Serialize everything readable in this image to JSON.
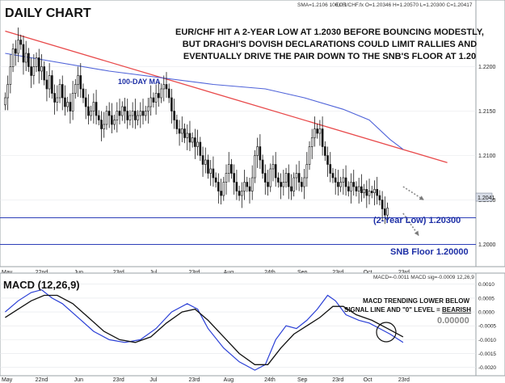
{
  "chart_data": [
    {
      "type": "candlestick",
      "title": "DAILY CHART",
      "header": {
        "sma": "SMA=1.2106  100,0,1",
        "quote": "EUR/CHF.fx O=1.20346 H=1.20570 L=1.20300 C=1.20417"
      },
      "annotation": {
        "lines": [
          "EUR/CHF HIT A 2-YEAR LOW AT 1.2030 BEFORE BOUNCING MODESTLY,",
          "BUT DRAGHI'S DOVISH DECLARATIONS COULD LIMIT RALLIES AND",
          "EVENTUALLY DRIVE THE PAIR DOWN TO THE SNB'S FLOOR AT 1.20"
        ]
      },
      "ma_label": "100-DAY MA",
      "ylim": [
        1.1975,
        1.2275
      ],
      "y_ticks": [
        "1.2200",
        "1.2150",
        "1.2100",
        "1.2050",
        "1.2000"
      ],
      "last_price": "1.2041",
      "levels": [
        {
          "label": "(2-Year Low)  1.20300",
          "value": 1.203
        },
        {
          "label": "SNB Floor  1.20000",
          "value": 1.2
        }
      ],
      "x_tick_labels": [
        "May",
        "22nd",
        "Jun",
        "23rd",
        "Jul",
        "23rd",
        "Aug",
        "24th",
        "Sep",
        "23rd",
        "Oct",
        "23rd"
      ],
      "close": [
        1.2165,
        1.218,
        1.22,
        1.222,
        1.2215,
        1.223,
        1.2225,
        1.2205,
        1.2215,
        1.22,
        1.219,
        1.22,
        1.221,
        1.2195,
        1.22,
        1.2185,
        1.2175,
        1.219,
        1.217,
        1.216,
        1.2165,
        1.218,
        1.2165,
        1.2155,
        1.216,
        1.215,
        1.217,
        1.218,
        1.219,
        1.2175,
        1.2165,
        1.2155,
        1.2145,
        1.215,
        1.216,
        1.2145,
        1.214,
        1.213,
        1.2135,
        1.215,
        1.2145,
        1.2135,
        1.214,
        1.215,
        1.2145,
        1.2155,
        1.215,
        1.214,
        1.2145,
        1.215,
        1.214,
        1.2145,
        1.215,
        1.2145,
        1.215,
        1.2155,
        1.2165,
        1.216,
        1.217,
        1.2165,
        1.2175,
        1.218,
        1.2175,
        1.2165,
        1.215,
        1.214,
        1.213,
        1.2125,
        1.213,
        1.212,
        1.2125,
        1.2115,
        1.212,
        1.211,
        1.2115,
        1.21,
        1.209,
        1.2095,
        1.208,
        1.2085,
        1.2075,
        1.207,
        1.206,
        1.2055,
        1.207,
        1.208,
        1.209,
        1.208,
        1.207,
        1.206,
        1.2055,
        1.206,
        1.207,
        1.2065,
        1.206,
        1.2075,
        1.21,
        1.211,
        1.2095,
        1.208,
        1.207,
        1.2065,
        1.2085,
        1.209,
        1.2075,
        1.207,
        1.2065,
        1.207,
        1.208,
        1.2065,
        1.206,
        1.2075,
        1.208,
        1.207,
        1.2065,
        1.2075,
        1.209,
        1.211,
        1.212,
        1.213,
        1.2125,
        1.213,
        1.211,
        1.21,
        1.209,
        1.208,
        1.2075,
        1.207,
        1.2065,
        1.207,
        1.2075,
        1.2065,
        1.206,
        1.207,
        1.2065,
        1.206,
        1.2065,
        1.2058,
        1.2062,
        1.2055,
        1.206,
        1.2058,
        1.2062,
        1.2055,
        1.205,
        1.204,
        1.2033,
        1.2041
      ],
      "sma100": [
        [
          0,
          1.2215
        ],
        [
          40,
          1.2195
        ],
        [
          80,
          1.218
        ],
        [
          100,
          1.2175
        ],
        [
          115,
          1.2165
        ],
        [
          130,
          1.2152
        ],
        [
          140,
          1.214
        ],
        [
          148,
          1.2118
        ],
        [
          153,
          1.2107
        ]
      ],
      "trendline": [
        [
          0,
          1.224
        ],
        [
          170,
          1.2092
        ]
      ],
      "forecast_arrows": [
        {
          "from": [
            153,
            1.2065
          ],
          "to": [
            161,
            1.205
          ]
        },
        {
          "from": [
            153,
            1.2035
          ],
          "to": [
            159,
            1.201
          ]
        }
      ],
      "xlim": [
        -2,
        181
      ]
    },
    {
      "type": "line",
      "title": "MACD (12,26,9)",
      "readout": "MACD=-0.0011 MACD sig=-0.0009  12,26,9",
      "ylim": [
        -0.0023,
        0.0014
      ],
      "y_ticks": [
        "0.0010",
        "0.0005",
        "0.0000",
        "-0.0005",
        "-0.0010",
        "-0.0015",
        "-0.0020"
      ],
      "zero_label": "0.00000",
      "annotation": {
        "line1": "MACD TRENDING LOWER BELOW",
        "line2_prefix": "SIGNAL LINE AND \"0\" LEVEL = ",
        "line2_emph": "BEARISH"
      },
      "x_tick_labels": [
        "May",
        "22nd",
        "Jun",
        "23rd",
        "Jul",
        "23rd",
        "Aug",
        "24th",
        "Sep",
        "23rd",
        "Oct",
        "23rd"
      ],
      "series": [
        {
          "values": [
            [
              0,
              0.0
            ],
            [
              5,
              0.0004
            ],
            [
              10,
              0.0007
            ],
            [
              14,
              0.0008
            ],
            [
              18,
              0.0005
            ],
            [
              22,
              0.0003
            ],
            [
              28,
              -0.0002
            ],
            [
              34,
              -0.0007
            ],
            [
              40,
              -0.001
            ],
            [
              46,
              -0.0011
            ],
            [
              52,
              -0.001
            ],
            [
              58,
              -0.0006
            ],
            [
              64,
              0.0
            ],
            [
              70,
              0.0003
            ],
            [
              74,
              0.0001
            ],
            [
              78,
              -0.0006
            ],
            [
              84,
              -0.0013
            ],
            [
              90,
              -0.0018
            ],
            [
              96,
              -0.0021
            ],
            [
              100,
              -0.0019
            ],
            [
              104,
              -0.001
            ],
            [
              108,
              -0.0005
            ],
            [
              112,
              -0.0006
            ],
            [
              116,
              -0.0003
            ],
            [
              120,
              0.0001
            ],
            [
              124,
              0.0006
            ],
            [
              127,
              0.0004
            ],
            [
              131,
              -0.0001
            ],
            [
              136,
              -0.0003
            ],
            [
              140,
              -0.0004
            ],
            [
              144,
              -0.0006
            ],
            [
              148,
              -0.0008
            ],
            [
              153,
              -0.0011
            ]
          ]
        },
        {
          "values": [
            [
              0,
              -0.0002
            ],
            [
              5,
              0.0001
            ],
            [
              10,
              0.0004
            ],
            [
              15,
              0.0006
            ],
            [
              20,
              0.0006
            ],
            [
              26,
              0.0003
            ],
            [
              32,
              -0.0002
            ],
            [
              38,
              -0.0007
            ],
            [
              44,
              -0.001
            ],
            [
              50,
              -0.0011
            ],
            [
              56,
              -0.0009
            ],
            [
              62,
              -0.0004
            ],
            [
              68,
              0.0
            ],
            [
              73,
              0.0001
            ],
            [
              78,
              -0.0003
            ],
            [
              84,
              -0.0009
            ],
            [
              90,
              -0.0015
            ],
            [
              96,
              -0.0019
            ],
            [
              101,
              -0.0019
            ],
            [
              106,
              -0.0013
            ],
            [
              111,
              -0.0008
            ],
            [
              116,
              -0.0005
            ],
            [
              121,
              -0.0002
            ],
            [
              126,
              0.0002
            ],
            [
              130,
              0.0002
            ],
            [
              135,
              -0.0001
            ],
            [
              141,
              -0.0003
            ],
            [
              147,
              -0.0006
            ],
            [
              153,
              -0.0009
            ]
          ]
        }
      ],
      "xlim": [
        -2,
        181
      ]
    }
  ]
}
